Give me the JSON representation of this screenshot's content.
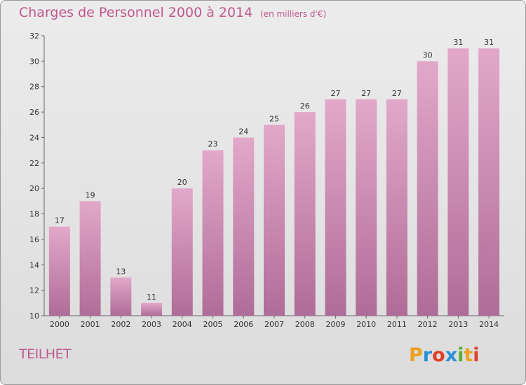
{
  "header": {
    "title": "Charges de Personnel 2000 à 2014",
    "subtitle": "(en milliers d'€)"
  },
  "footer": {
    "commune": "TEILHET",
    "logo_text": "Proxiti"
  },
  "colors": {
    "bar_top": "#e2a8c9",
    "bar_bottom": "#b06c98",
    "accent_text": "#c0588e"
  },
  "chart_data": {
    "type": "bar",
    "categories": [
      "2000",
      "2001",
      "2002",
      "2003",
      "2004",
      "2005",
      "2006",
      "2007",
      "2008",
      "2009",
      "2010",
      "2011",
      "2012",
      "2013",
      "2014"
    ],
    "values": [
      17,
      19,
      13,
      11,
      20,
      23,
      24,
      25,
      26,
      27,
      27,
      27,
      30,
      31,
      31
    ],
    "title": "Charges de Personnel 2000 à 2014",
    "subtitle": "(en milliers d'€)",
    "xlabel": "",
    "ylabel": "",
    "ylim": [
      10,
      32
    ],
    "yticks": [
      10,
      12,
      14,
      16,
      18,
      20,
      22,
      24,
      26,
      28,
      30,
      32
    ],
    "grid": false
  }
}
